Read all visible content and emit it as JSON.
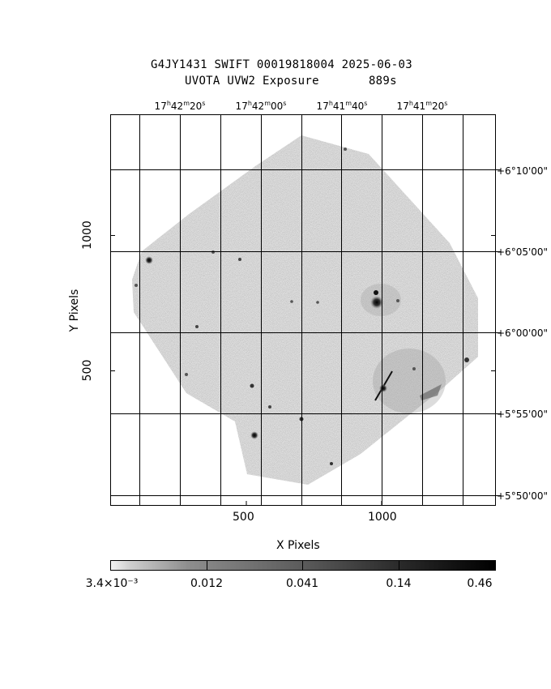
{
  "title": {
    "line1": "G4JY1431 SWIFT 00019818004 2025-06-03",
    "line2": "UVOTA UVW2 Exposure       889s"
  },
  "axes": {
    "xlabel": "X Pixels",
    "ylabel": "Y Pixels",
    "x_ticks": [
      "500",
      "1000"
    ],
    "y_ticks": [
      "1000",
      "500"
    ]
  },
  "ra_labels": [
    {
      "h": "17",
      "m": "42",
      "s": "20"
    },
    {
      "h": "17",
      "m": "42",
      "s": "00"
    },
    {
      "h": "17",
      "m": "41",
      "s": "40"
    },
    {
      "h": "17",
      "m": "41",
      "s": "20"
    }
  ],
  "dec_labels": [
    "+6°10'00\"",
    "+6°05'00\"",
    "+6°00'00\"",
    "+5°55'00\"",
    "+5°50'00\""
  ],
  "colorbar": {
    "labels": [
      "3.4×10⁻³",
      "0.012",
      "0.041",
      "0.14",
      "0.46"
    ],
    "colormap": "grayscale"
  },
  "colors": {
    "frame": "#000000",
    "background": "#ffffff"
  }
}
